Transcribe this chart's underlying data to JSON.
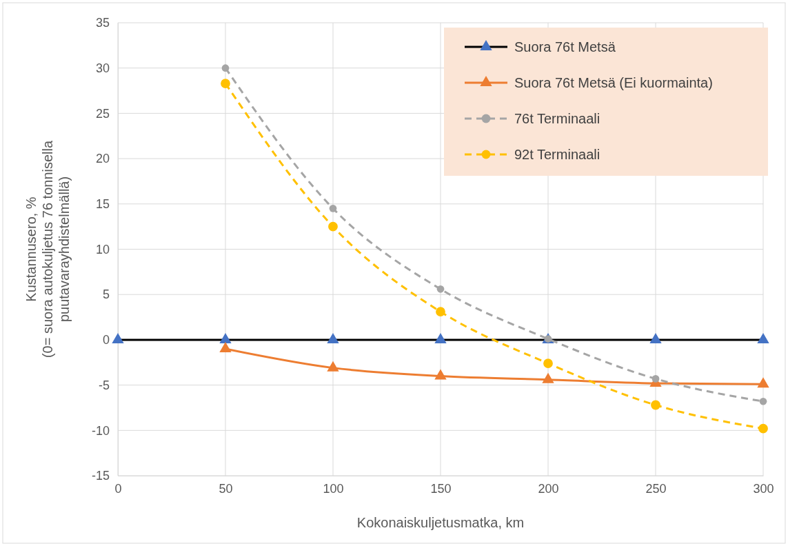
{
  "chart_data": {
    "type": "line",
    "xlabel": "Kokonaiskuljetusmatka, km",
    "ylabel": "Kustannusero, %\n(0= suora autokuljetus 76 tonnisella puutavarayhdistelmällä)",
    "xlim": [
      0,
      300
    ],
    "xticks": [
      0,
      50,
      100,
      150,
      200,
      250,
      300
    ],
    "ylim": [
      -15,
      35
    ],
    "yticks": [
      -15,
      -10,
      -5,
      0,
      5,
      10,
      15,
      20,
      25,
      30,
      35
    ],
    "grid": true,
    "legend": "top right",
    "series": [
      {
        "name": "Suora 76t Metsä",
        "color": "#000000",
        "colors": [
          "#4472c4",
          "#4472c4",
          "#4472c4",
          "#4472c4",
          "#4472c4",
          "#4472c4",
          "#4472c4"
        ],
        "marker": "triangle",
        "line_style": "solid",
        "x": [
          0,
          50,
          100,
          150,
          200,
          250,
          300
        ],
        "values": [
          0,
          0,
          0,
          0,
          0,
          0,
          0
        ]
      },
      {
        "name": "Suora 76t Metsä (Ei kuormainta)",
        "color": "#ed7d31",
        "marker": "triangle",
        "line_style": "solid",
        "x": [
          50,
          100,
          150,
          200,
          250,
          300
        ],
        "values": [
          -1.0,
          -3.1,
          -4.0,
          -4.4,
          -4.8,
          -4.9
        ]
      },
      {
        "name": "76t Terminaali",
        "color": "#a5a5a5",
        "marker": "circle",
        "line_style": "dashed",
        "x": [
          50,
          100,
          150,
          200,
          250,
          300
        ],
        "values": [
          30,
          14.5,
          5.6,
          0.1,
          -4.3,
          -6.8
        ]
      },
      {
        "name": "92t Terminaali",
        "color": "#ffc000",
        "marker": "circle",
        "line_style": "dashed",
        "x": [
          50,
          100,
          150,
          200,
          250,
          300
        ],
        "values": [
          28.3,
          12.5,
          3.1,
          -2.6,
          -7.2,
          -9.8
        ]
      }
    ]
  }
}
